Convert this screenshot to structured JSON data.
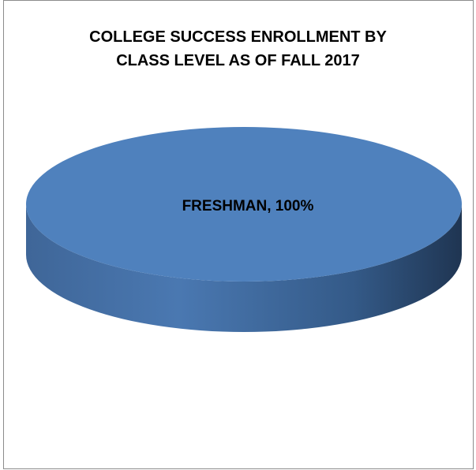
{
  "chart_data": {
    "type": "pie",
    "style": "3d",
    "title": "COLLEGE SUCCESS ENROLLMENT BY CLASS LEVEL AS OF FALL 2017",
    "title_lines": [
      "COLLEGE SUCCESS ENROLLMENT BY",
      "CLASS LEVEL AS OF FALL 2017"
    ],
    "slices": [
      {
        "label": "FRESHMAN",
        "value": 100,
        "data_label": "FRESHMAN, 100%"
      }
    ],
    "legend": "none",
    "colors": {
      "slice_top": "#4f81bd",
      "slice_side_light": "#4a78b1",
      "slice_side_dark": "#1f3552",
      "border": "#8c8c8c"
    }
  }
}
